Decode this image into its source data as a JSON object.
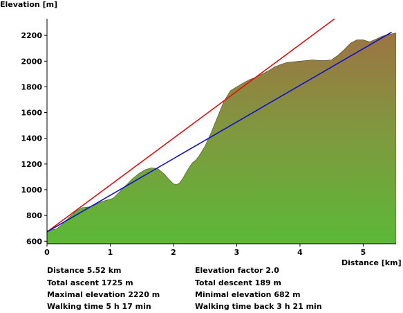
{
  "chart_data": {
    "type": "area",
    "ylabel": "Elevation [m]",
    "xlabel": "Distance [km]",
    "xlim": [
      0,
      5.52
    ],
    "ylim": [
      580,
      2330
    ],
    "xticks": [
      0,
      1,
      2,
      3,
      4,
      5
    ],
    "yticks": [
      600,
      800,
      1000,
      1200,
      1400,
      1600,
      1800,
      2000,
      2200
    ],
    "grid": false,
    "colors": {
      "fill_top": "#9c7443",
      "fill_mid": "#7e9a3e",
      "fill_bottom": "#5bb937",
      "red_line": "#dd1111",
      "blue_line": "#1111cc",
      "plot_bg": "#ffffff"
    },
    "profile": {
      "x": [
        0,
        0.05,
        0.15,
        0.25,
        0.35,
        0.45,
        0.55,
        0.65,
        0.75,
        0.85,
        0.95,
        1.05,
        1.15,
        1.25,
        1.35,
        1.45,
        1.55,
        1.65,
        1.75,
        1.85,
        1.92,
        2.0,
        2.05,
        2.1,
        2.15,
        2.2,
        2.25,
        2.3,
        2.35,
        2.4,
        2.5,
        2.6,
        2.7,
        2.8,
        2.9,
        3.0,
        3.1,
        3.2,
        3.3,
        3.4,
        3.5,
        3.6,
        3.7,
        3.8,
        3.9,
        4.0,
        4.1,
        4.2,
        4.3,
        4.4,
        4.5,
        4.6,
        4.7,
        4.8,
        4.9,
        5.0,
        5.1,
        5.2,
        5.3,
        5.4,
        5.52
      ],
      "y": [
        682,
        685,
        695,
        735,
        785,
        830,
        860,
        865,
        880,
        905,
        920,
        935,
        985,
        1035,
        1085,
        1125,
        1155,
        1170,
        1165,
        1125,
        1085,
        1045,
        1040,
        1055,
        1090,
        1135,
        1175,
        1210,
        1230,
        1260,
        1340,
        1450,
        1570,
        1690,
        1770,
        1800,
        1830,
        1855,
        1875,
        1900,
        1925,
        1955,
        1975,
        1990,
        1995,
        2000,
        2005,
        2010,
        2005,
        2005,
        2010,
        2045,
        2090,
        2140,
        2165,
        2165,
        2150,
        2170,
        2195,
        2205,
        2220
      ]
    },
    "lines": [
      {
        "color": "#dd1111",
        "x": [
          0,
          4.55
        ],
        "y": [
          672,
          2330
        ]
      },
      {
        "color": "#1111cc",
        "x": [
          0,
          5.45
        ],
        "y": [
          672,
          2225
        ]
      }
    ]
  },
  "stats": {
    "distance": "Distance 5.52 km",
    "elevation_factor": "Elevation factor 2.0",
    "total_ascent": "Total ascent  1725 m",
    "total_descent": "Total descent  189 m",
    "max_elevation": "Maximal elevation  2220 m",
    "min_elevation": "Minimal elevation  682 m",
    "walking_time": "Walking time  5 h 17 min",
    "walking_time_back": "Walking time back  3 h 21 min"
  }
}
